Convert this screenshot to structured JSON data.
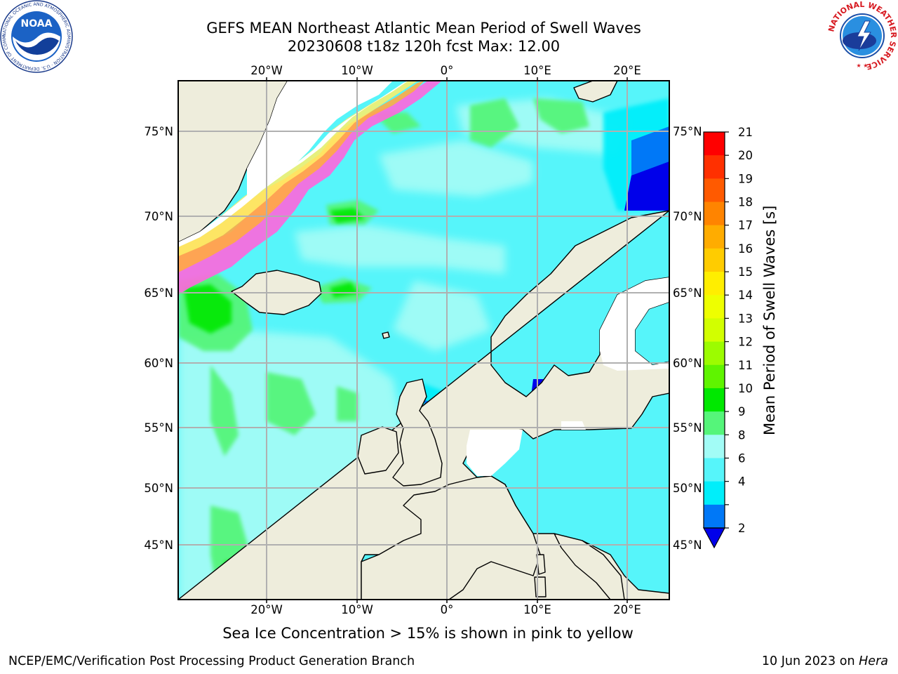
{
  "title": {
    "line1": "GEFS MEAN Northeast Atlantic Mean Period of Swell Waves",
    "line2": "20230608 t18z 120h fcst   Max: 12.00"
  },
  "map": {
    "x_ticks": [
      "20°W",
      "10°W",
      "0°",
      "10°E",
      "20°E"
    ],
    "y_ticks": [
      "75°N",
      "70°N",
      "65°N",
      "60°N",
      "55°N",
      "50°N",
      "45°N"
    ],
    "colors": {
      "land": "#eeeddc",
      "coast": "#000000",
      "grid": "#b0b0b0",
      "ocean_base": "#56f5fa",
      "ice_pink": "#ff66dd",
      "ice_orange": "#ffaa44",
      "ice_yellow": "#ffee66"
    }
  },
  "colorbar": {
    "label": "Mean Period of Swell Waves [s]",
    "ticks": [
      "21",
      "20",
      "19",
      "18",
      "17",
      "16",
      "15",
      "14",
      "13",
      "12",
      "11",
      "10",
      "9",
      "8",
      "6",
      "4",
      "2"
    ],
    "bands": [
      "#ff0000",
      "#ff3000",
      "#ff5a00",
      "#ff8400",
      "#ffac00",
      "#ffcc00",
      "#ffee00",
      "#eeff00",
      "#d2ff00",
      "#9cfc00",
      "#5ff400",
      "#00e800",
      "#55f57a",
      "#a2fcf6",
      "#56f5fa",
      "#00eefa",
      "#0078f7"
    ],
    "under_color": "#0000ea"
  },
  "footnote": "Sea Ice Concentration > 15% is shown in pink to yellow",
  "credits": {
    "left": "NCEP/EMC/Verification Post Processing Product Generation Branch",
    "right_date": "10 Jun 2023 on",
    "right_machine": "Hera"
  },
  "logos": {
    "left_text": "NOAA",
    "left_ring": "NATIONAL OCEANIC AND ATMOSPHERIC ADMINISTRATION · U.S. DEPARTMENT OF COMMERCE",
    "right_ring": "NATIONAL WEATHER SERVICE"
  }
}
